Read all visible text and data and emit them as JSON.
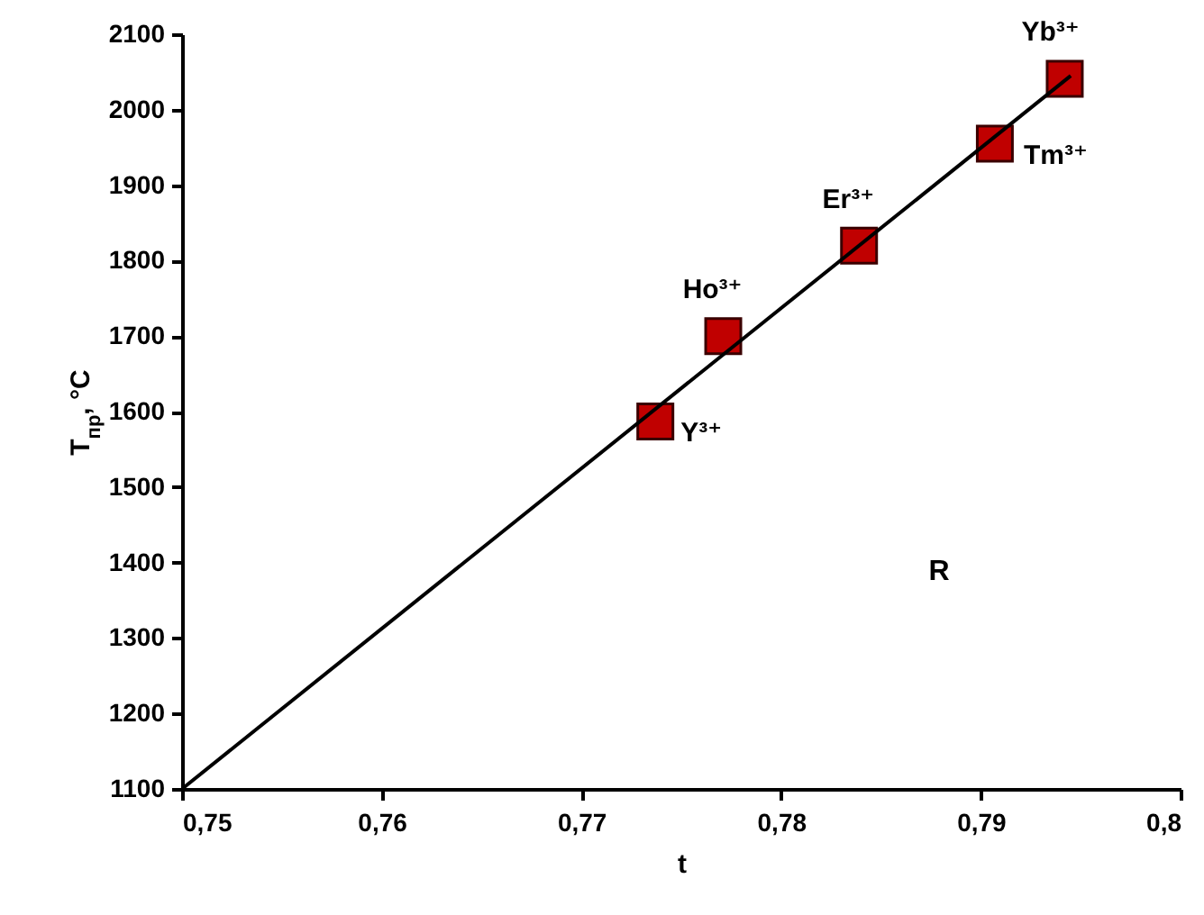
{
  "chart_data": {
    "type": "scatter",
    "xlabel": "t",
    "ylabel": "T$_{пр}$, °C",
    "xlim": [
      0.75,
      0.8
    ],
    "ylim": [
      1100,
      2100
    ],
    "xticks": [
      {
        "value": 0.75,
        "label": "0,75"
      },
      {
        "value": 0.76,
        "label": "0,76"
      },
      {
        "value": 0.77,
        "label": "0,77"
      },
      {
        "value": 0.78,
        "label": "0,78"
      },
      {
        "value": 0.79,
        "label": "0,79"
      },
      {
        "value": 0.8,
        "label": "0,8"
      }
    ],
    "yticks": [
      1100,
      1200,
      1300,
      1400,
      1500,
      1600,
      1700,
      1800,
      1900,
      2000,
      2100
    ],
    "marker": "square",
    "grid": false,
    "series": [
      {
        "color": "#c00000",
        "x": [
          0.7737,
          0.7771,
          0.7839,
          0.7907,
          0.7942
        ],
        "values": [
          1587,
          1700,
          1820,
          1955,
          2041
        ]
      },
      {
        "type": "line",
        "marker": "none",
        "color": "#000000",
        "x": [
          0.75,
          0.7945
        ],
        "values": [
          1100,
          2045
        ]
      }
    ],
    "annotations": [
      {
        "text": "Y³⁺",
        "x": 0.7737,
        "y": 1587
      },
      {
        "text": "Ho³⁺",
        "x": 0.7771,
        "y": 1700
      },
      {
        "text": "Er³⁺",
        "x": 0.7839,
        "y": 1820
      },
      {
        "text": "Tm³⁺",
        "x": 0.7907,
        "y": 1955
      },
      {
        "text": "Yb³⁺",
        "x": 0.7942,
        "y": 2041
      },
      "R"
    ]
  }
}
